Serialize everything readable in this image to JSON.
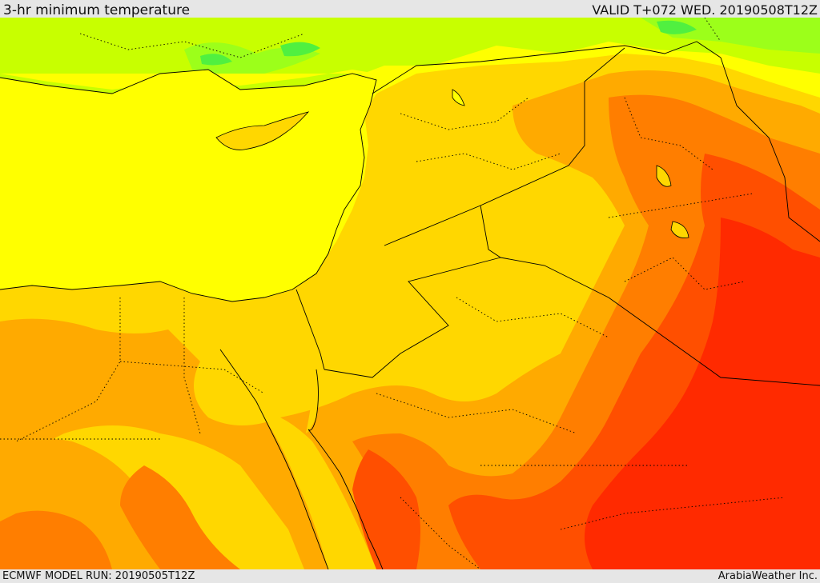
{
  "header": {
    "title": "3-hr minimum temperature",
    "valid": "VALID T+072 WED. 20190508T12Z"
  },
  "footer": {
    "model_run": "ECMWF MODEL RUN: 20190505T12Z",
    "credit": "ArabiaWeather Inc."
  },
  "colors": {
    "sea": "#ffff00",
    "level_1": "#ffd700",
    "level_2": "#ffaa00",
    "level_3": "#ff7e00",
    "level_4": "#ff4f00",
    "level_5": "#ff2a00",
    "cool_1": "#c8ff00",
    "cool_2": "#9cff1a",
    "cool_3": "#50f040",
    "border": "#000000"
  }
}
